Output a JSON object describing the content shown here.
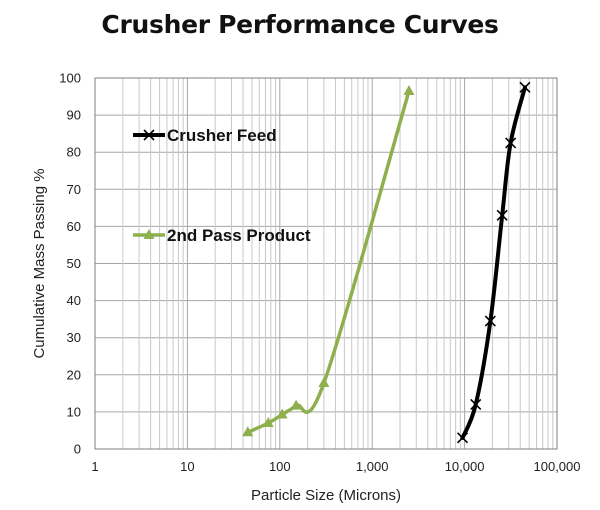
{
  "chart_data": {
    "type": "line",
    "title": "Crusher Performance Curves",
    "xlabel": "Particle Size (Microns)",
    "ylabel": "Cumulative Mass Passing %",
    "xscale": "log",
    "xlim": [
      1,
      100000
    ],
    "ylim": [
      0,
      100
    ],
    "x_ticks": [
      1,
      10,
      100,
      1000,
      10000,
      100000
    ],
    "x_tick_labels": [
      "1",
      "10",
      "100",
      "1,000",
      "10,000",
      "100,000"
    ],
    "y_ticks": [
      0,
      10,
      20,
      30,
      40,
      50,
      60,
      70,
      80,
      90,
      100
    ],
    "y_tick_labels": [
      "0",
      "10",
      "20",
      "30",
      "40",
      "50",
      "60",
      "70",
      "80",
      "90",
      "100"
    ],
    "grid": true,
    "series": [
      {
        "name": "Crusher Feed",
        "color": "#000000",
        "marker": "x",
        "x": [
          9500,
          13200,
          19000,
          25500,
          31500,
          45000
        ],
        "y": [
          3,
          12,
          34.5,
          63,
          82.5,
          97.5
        ]
      },
      {
        "name": "2nd Pass Product",
        "color": "#8db04d",
        "marker": "triangle",
        "x": [
          45,
          75,
          106,
          150,
          300,
          2500
        ],
        "y": [
          4.5,
          7,
          9.3,
          11.7,
          17.8,
          96.5
        ]
      }
    ]
  }
}
